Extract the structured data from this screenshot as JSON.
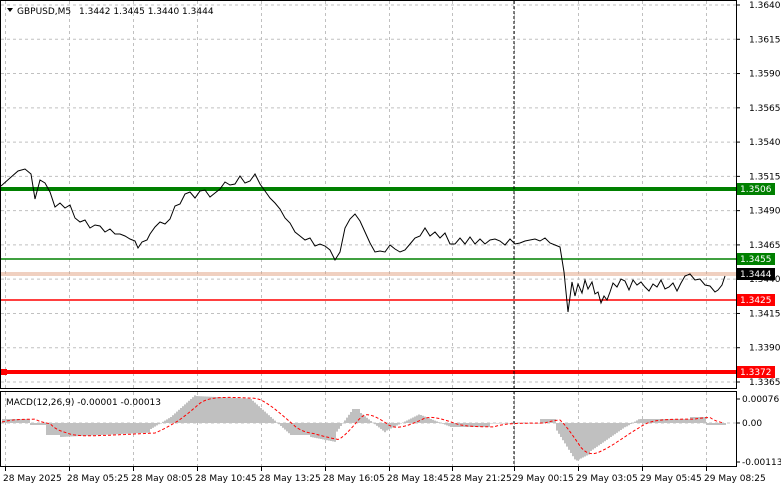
{
  "header": {
    "symbol": "GBPUSD,M5",
    "ohlc": "1.3442 1.3445 1.3440 1.3444"
  },
  "price_axis": {
    "ticks": [
      "1.3640",
      "1.3615",
      "1.3590",
      "1.3565",
      "1.3540",
      "1.3515",
      "1.3490",
      "1.3465",
      "1.3440",
      "1.3415",
      "1.3390",
      "1.3365"
    ]
  },
  "levels": [
    {
      "label": "1.3506",
      "value": 1.3506,
      "color": "#008000",
      "width": "thick"
    },
    {
      "label": "1.3455",
      "value": 1.3455,
      "color": "#008000",
      "width": "thin"
    },
    {
      "label": "1.3425",
      "value": 1.3425,
      "color": "#ff0000",
      "width": "thin"
    },
    {
      "label": "1.3372",
      "value": 1.3372,
      "color": "#ff0000",
      "width": "thick"
    }
  ],
  "current_price": {
    "label": "1.3444",
    "value": 1.3444
  },
  "macd": {
    "title": "MACD(12,26,9) -0.00001 -0.00013",
    "ticks": [
      "0.00076",
      "0.00",
      "-0.00113"
    ]
  },
  "time_axis": {
    "labels": [
      "28 May 2025",
      "28 May 05:25",
      "28 May 08:05",
      "28 May 10:45",
      "28 May 13:25",
      "28 May 16:05",
      "28 May 18:45",
      "28 May 21:25",
      "29 May 00:15",
      "29 May 03:05",
      "29 May 05:45",
      "29 May 08:25"
    ]
  },
  "colors": {
    "background": "#ffffff",
    "grid": "#c0c0c0",
    "price_line": "#000000",
    "histogram": "#c0c0c0",
    "signal": "#ff0000",
    "support_green": "#008000",
    "resistance_red": "#ff0000",
    "current_tag": "#000000"
  },
  "chart_data": {
    "type": "line",
    "title": "GBPUSD,M5",
    "x": [
      "28 May 2025",
      "28 May 05:25",
      "28 May 08:05",
      "28 May 10:45",
      "28 May 13:25",
      "28 May 16:05",
      "28 May 18:45",
      "28 May 21:25",
      "29 May 00:15",
      "29 May 03:05",
      "29 May 05:45",
      "29 May 08:25"
    ],
    "series": [
      {
        "name": "close",
        "values": [
          1.3508,
          1.3478,
          1.3468,
          1.3508,
          1.3478,
          1.3462,
          1.3482,
          1.3468,
          1.3462,
          1.3432,
          1.3436,
          1.3444
        ]
      }
    ],
    "ylim": [
      1.336,
      1.3642
    ]
  }
}
